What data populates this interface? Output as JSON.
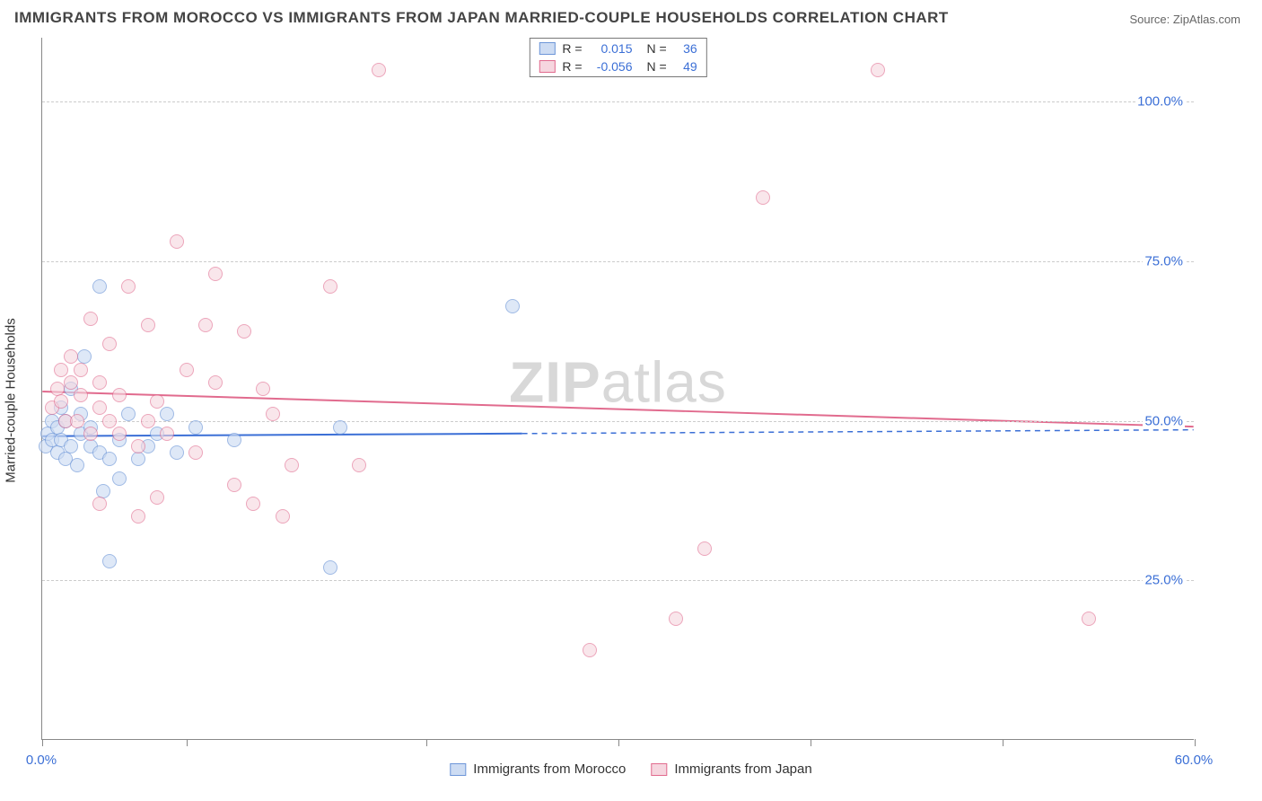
{
  "title": "IMMIGRANTS FROM MOROCCO VS IMMIGRANTS FROM JAPAN MARRIED-COUPLE HOUSEHOLDS CORRELATION CHART",
  "source_label": "Source: ZipAtlas.com",
  "ylabel": "Married-couple Households",
  "watermark_a": "ZIP",
  "watermark_b": "atlas",
  "chart": {
    "type": "scatter",
    "background_color": "#ffffff",
    "grid_color": "#cccccc",
    "axis_color": "#888888",
    "xlim": [
      0,
      60
    ],
    "ylim": [
      0,
      110
    ],
    "xtick_positions": [
      0,
      7.5,
      20,
      30,
      40,
      50,
      60
    ],
    "xtick_labels": {
      "0": "0.0%",
      "60": "60.0%"
    },
    "ytick_positions": [
      25,
      50,
      75,
      100
    ],
    "ytick_labels": [
      "25.0%",
      "50.0%",
      "75.0%",
      "100.0%"
    ],
    "series": [
      {
        "name": "Immigrants from Morocco",
        "fill": "#cddcf3",
        "fill_opacity": 0.65,
        "stroke": "#6d96d8",
        "marker_size": 16,
        "r_label": "R =",
        "r_value": "0.015",
        "n_label": "N =",
        "n_value": "36",
        "trend": {
          "y_start": 47.5,
          "y_end": 48.5,
          "x_solid_end": 25,
          "color": "#3b6fd6",
          "width": 2
        },
        "points": [
          [
            0.2,
            46
          ],
          [
            0.3,
            48
          ],
          [
            0.5,
            47
          ],
          [
            0.5,
            50
          ],
          [
            0.8,
            45
          ],
          [
            0.8,
            49
          ],
          [
            1.0,
            47
          ],
          [
            1.0,
            52
          ],
          [
            1.2,
            44
          ],
          [
            1.2,
            50
          ],
          [
            1.5,
            46
          ],
          [
            1.5,
            55
          ],
          [
            1.8,
            43
          ],
          [
            2.0,
            48
          ],
          [
            2.0,
            51
          ],
          [
            2.2,
            60
          ],
          [
            2.5,
            46
          ],
          [
            2.5,
            49
          ],
          [
            3.0,
            71
          ],
          [
            3.0,
            45
          ],
          [
            3.2,
            39
          ],
          [
            3.5,
            44
          ],
          [
            3.5,
            28
          ],
          [
            4.0,
            47
          ],
          [
            4.0,
            41
          ],
          [
            4.5,
            51
          ],
          [
            5.0,
            44
          ],
          [
            5.5,
            46
          ],
          [
            6.0,
            48
          ],
          [
            6.5,
            51
          ],
          [
            7.0,
            45
          ],
          [
            8.0,
            49
          ],
          [
            10.0,
            47
          ],
          [
            15.0,
            27
          ],
          [
            15.5,
            49
          ],
          [
            24.5,
            68
          ]
        ]
      },
      {
        "name": "Immigrants from Japan",
        "fill": "#f6d6df",
        "fill_opacity": 0.6,
        "stroke": "#e16b8e",
        "marker_size": 16,
        "r_label": "R =",
        "r_value": "-0.056",
        "n_label": "N =",
        "n_value": "49",
        "trend": {
          "y_start": 54.5,
          "y_end": 49,
          "x_solid_end": 60,
          "color": "#e16b8e",
          "width": 2
        },
        "points": [
          [
            0.5,
            52
          ],
          [
            0.8,
            55
          ],
          [
            1.0,
            53
          ],
          [
            1.0,
            58
          ],
          [
            1.2,
            50
          ],
          [
            1.5,
            56
          ],
          [
            1.5,
            60
          ],
          [
            1.8,
            50
          ],
          [
            2.0,
            54
          ],
          [
            2.0,
            58
          ],
          [
            2.5,
            48
          ],
          [
            2.5,
            66
          ],
          [
            3.0,
            52
          ],
          [
            3.0,
            56
          ],
          [
            3.0,
            37
          ],
          [
            3.5,
            50
          ],
          [
            3.5,
            62
          ],
          [
            4.0,
            48
          ],
          [
            4.0,
            54
          ],
          [
            4.5,
            71
          ],
          [
            5.0,
            46
          ],
          [
            5.0,
            35
          ],
          [
            5.5,
            50
          ],
          [
            5.5,
            65
          ],
          [
            6.0,
            53
          ],
          [
            6.0,
            38
          ],
          [
            6.5,
            48
          ],
          [
            7.0,
            78
          ],
          [
            7.5,
            58
          ],
          [
            8.0,
            45
          ],
          [
            8.5,
            65
          ],
          [
            9.0,
            56
          ],
          [
            9.0,
            73
          ],
          [
            10.0,
            40
          ],
          [
            10.5,
            64
          ],
          [
            11.0,
            37
          ],
          [
            11.5,
            55
          ],
          [
            12.0,
            51
          ],
          [
            12.5,
            35
          ],
          [
            13.0,
            43
          ],
          [
            15.0,
            71
          ],
          [
            16.5,
            43
          ],
          [
            17.5,
            105
          ],
          [
            28.5,
            14
          ],
          [
            33.0,
            19
          ],
          [
            34.5,
            30
          ],
          [
            37.5,
            85
          ],
          [
            43.5,
            105
          ],
          [
            54.5,
            19
          ]
        ]
      }
    ]
  }
}
